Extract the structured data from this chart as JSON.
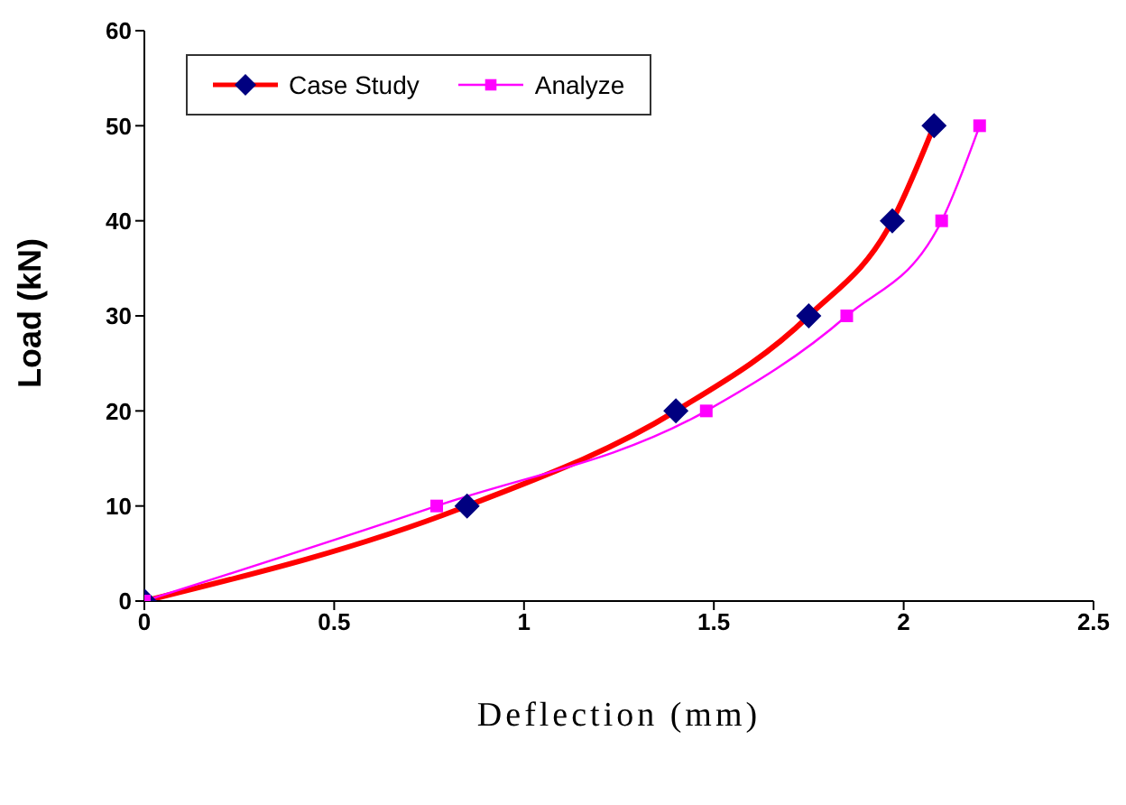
{
  "chart_data": {
    "type": "line",
    "xlabel": "Deflection (mm)",
    "ylabel": "Load (kN)",
    "xlim": [
      0,
      2.5
    ],
    "xticks": [
      0,
      0.5,
      1,
      1.5,
      2,
      2.5
    ],
    "ylim": [
      0,
      60
    ],
    "yticks": [
      0,
      10,
      20,
      30,
      40,
      50,
      60
    ],
    "grid": false,
    "legend": "top left",
    "line_style": "solid",
    "series": [
      {
        "name": "Case Study",
        "color": "#ff0000",
        "colors": [
          "#000080",
          "#000080",
          "#000080",
          "#000080",
          "#000080",
          "#000080"
        ],
        "marker": "diamond",
        "x": [
          0,
          0.85,
          1.4,
          1.75,
          1.97,
          2.08
        ],
        "values": [
          0,
          10,
          20,
          30,
          40,
          50
        ]
      },
      {
        "name": "Analyze",
        "color": "#ff00ff",
        "colors": [
          "#ff00ff",
          "#ff00ff",
          "#ff00ff",
          "#ff00ff",
          "#ff00ff",
          "#ff00ff"
        ],
        "marker": "square",
        "x": [
          0,
          0.77,
          1.48,
          1.85,
          2.1,
          2.2
        ],
        "values": [
          0,
          10,
          20,
          30,
          40,
          50
        ]
      }
    ]
  }
}
